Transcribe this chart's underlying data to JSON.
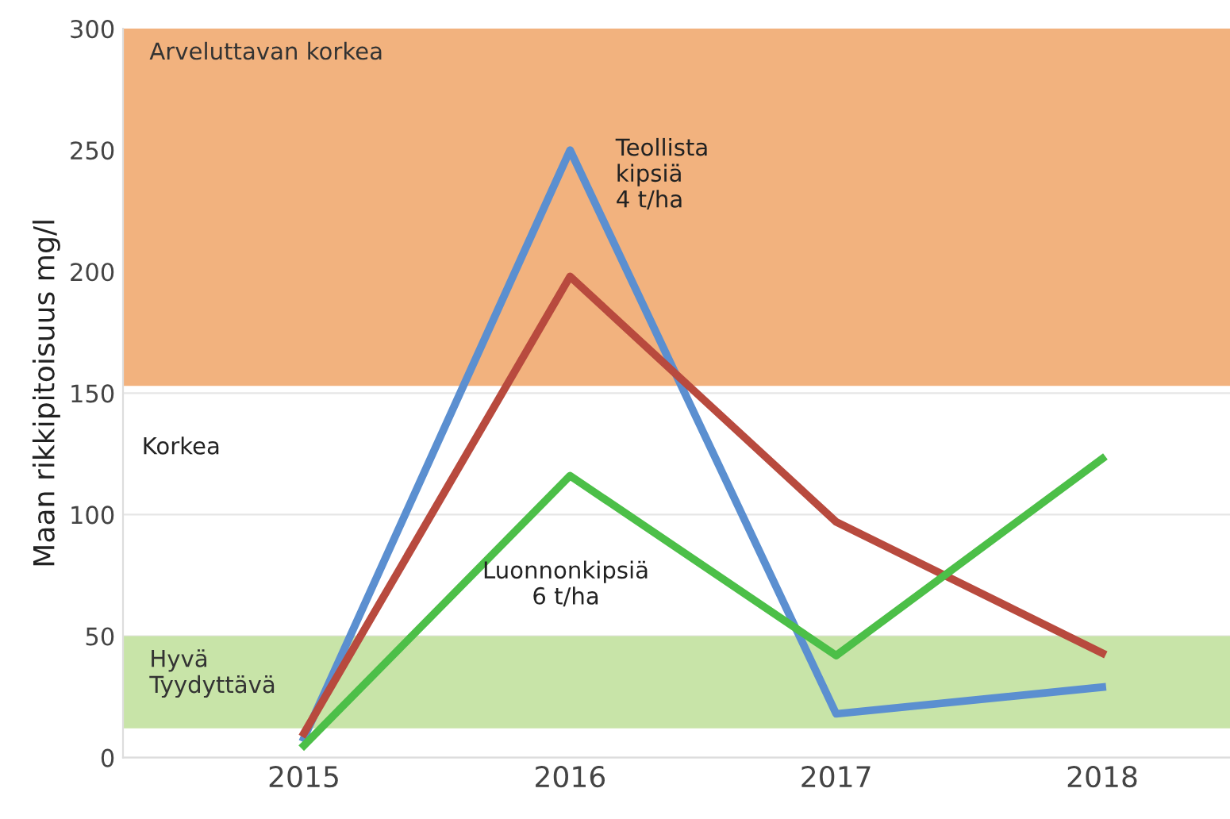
{
  "chart_data": {
    "type": "line",
    "ylabel": "Maan rikkipitoisuus mg/l",
    "x": [
      2015,
      2016,
      2017,
      2018
    ],
    "series": [
      {
        "color": "#5b8fd0",
        "values": [
          8,
          250,
          18,
          29
        ]
      },
      {
        "color": "#b84a3e",
        "values": [
          10,
          198,
          97,
          43
        ]
      },
      {
        "color": "#4cbf48",
        "values": [
          5,
          116,
          42,
          123
        ]
      }
    ],
    "xlim": [
      2014.32,
      2018.48
    ],
    "xticks": [
      2015,
      2016,
      2017,
      2018
    ],
    "ylim": [
      0,
      300
    ],
    "yticks": [
      0,
      50,
      100,
      150,
      200,
      250,
      300
    ],
    "grid": "y",
    "marker": "none",
    "line_style": "solid",
    "bands": [
      {
        "axis": "y",
        "from": 153,
        "to": 300,
        "label": "Arveluttavan korkea",
        "color": "#f2b27e"
      },
      {
        "axis": "y",
        "from": 12,
        "to": 50,
        "label": "Hyvä\nTyydyttävä",
        "color": "#c8e4a8"
      }
    ],
    "annotations": [
      "Teollista\nkipsiä\n4 t/ha",
      "Luonnonkipsiä\n6 t/ha",
      "Korkea"
    ]
  }
}
